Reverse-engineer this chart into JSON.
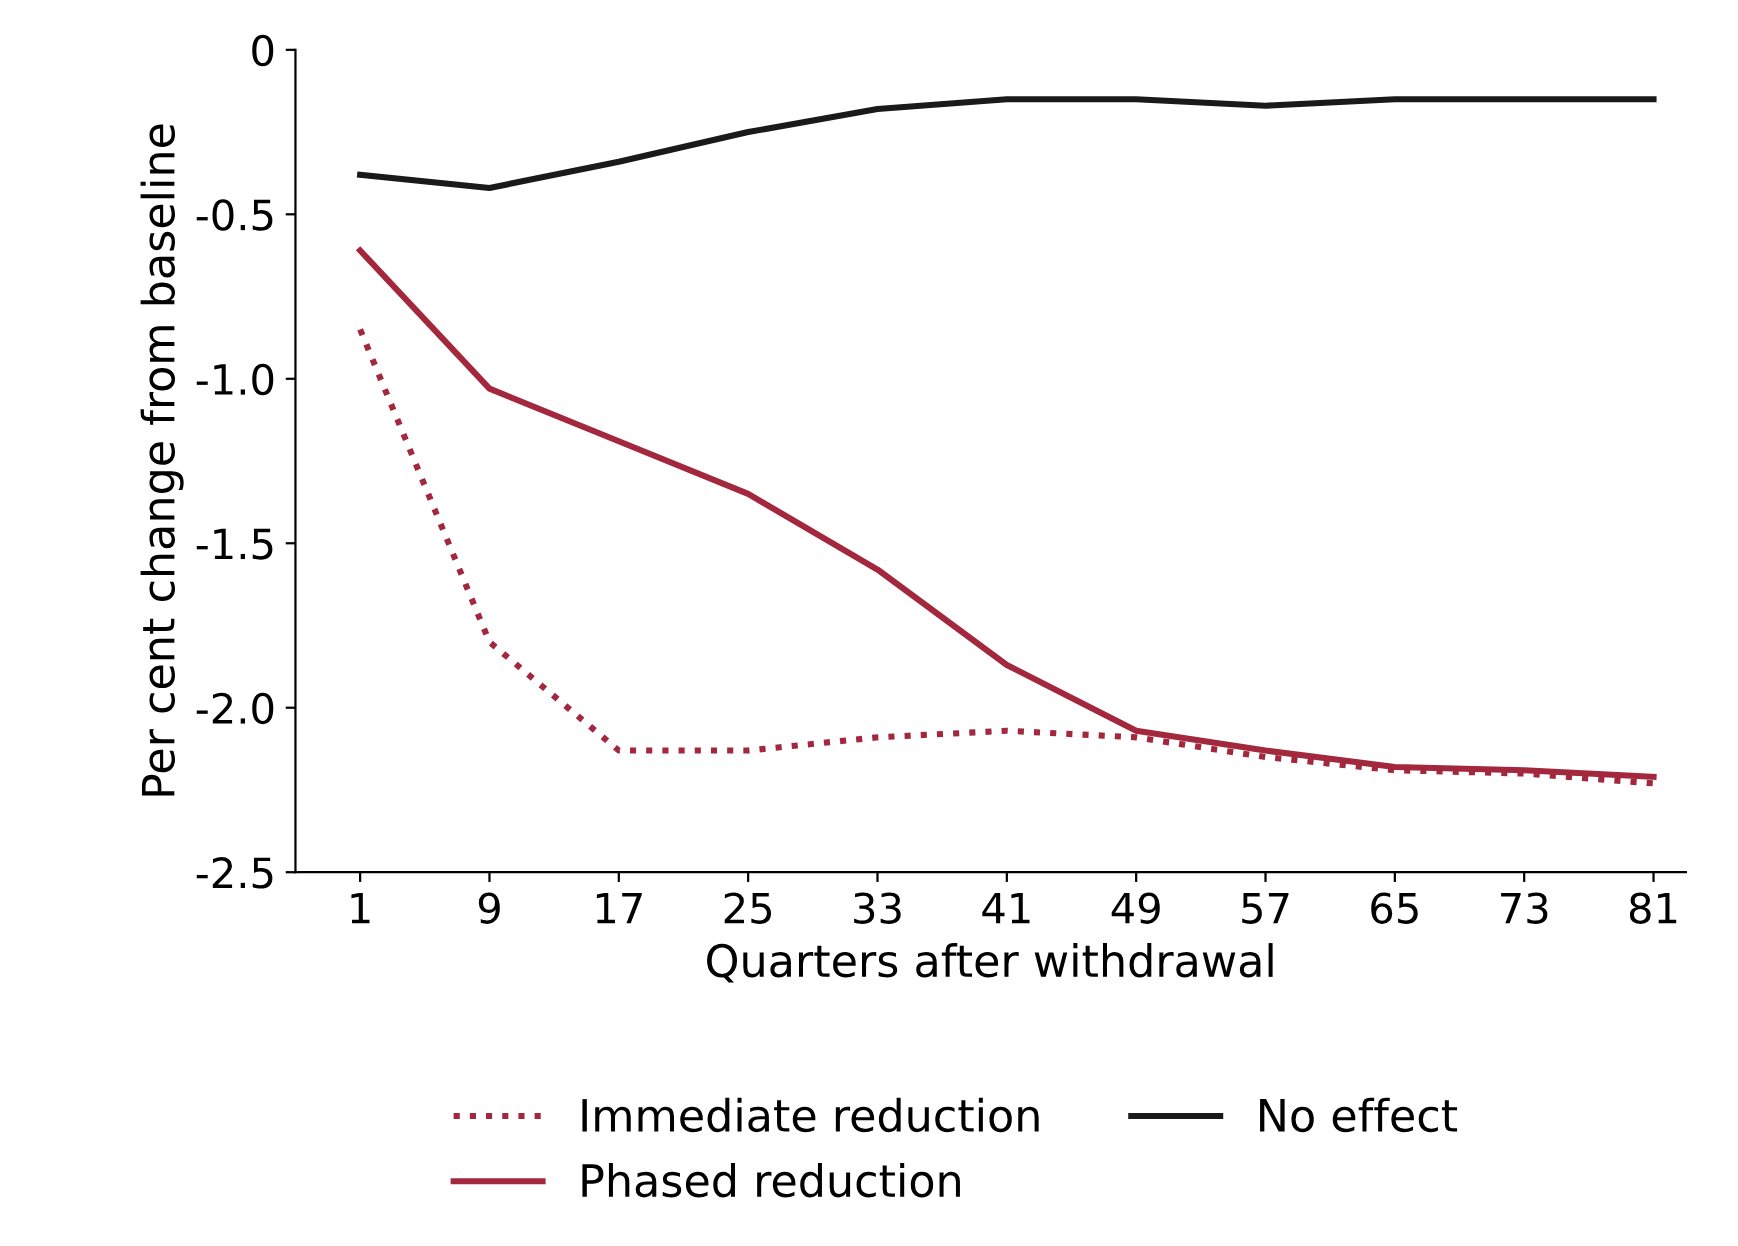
{
  "chart_data": {
    "type": "line",
    "xlabel": "Quarters after withdrawal",
    "ylabel": "Per cent change from baseline",
    "x": [
      1,
      9,
      17,
      25,
      33,
      41,
      49,
      57,
      65,
      73,
      81
    ],
    "series": [
      {
        "name": "Immediate reduction",
        "color": "#a3283e",
        "line_style": "dotted",
        "values": [
          -0.85,
          -1.8,
          -2.13,
          -2.13,
          -2.09,
          -2.07,
          -2.09,
          -2.15,
          -2.19,
          -2.2,
          -2.23
        ]
      },
      {
        "name": "Phased reduction",
        "color": "#a3283e",
        "line_style": "solid",
        "values": [
          -0.61,
          -1.03,
          -1.19,
          -1.35,
          -1.58,
          -1.87,
          -2.07,
          -2.13,
          -2.18,
          -2.19,
          -2.21
        ]
      },
      {
        "name": "No effect",
        "color": "#1a1a1a",
        "line_style": "solid",
        "values": [
          -0.38,
          -0.42,
          -0.34,
          -0.25,
          -0.18,
          -0.15,
          -0.15,
          -0.17,
          -0.15,
          -0.15,
          -0.15
        ]
      }
    ],
    "xlim": [
      -3,
      83
    ],
    "xticks": [
      1,
      9,
      17,
      25,
      33,
      41,
      49,
      57,
      65,
      73,
      81
    ],
    "ylim": [
      -2.5,
      0
    ],
    "yticks": [
      0,
      {
        "value": -0.5,
        "label": "-0.5"
      },
      {
        "value": -1.0,
        "label": "-1.0"
      },
      {
        "value": -1.5,
        "label": "-1.5"
      },
      {
        "value": -2.0,
        "label": "-2.0"
      },
      {
        "value": -2.5,
        "label": "-2.5"
      }
    ],
    "grid": false,
    "legend": "bottom",
    "marker": "none"
  }
}
